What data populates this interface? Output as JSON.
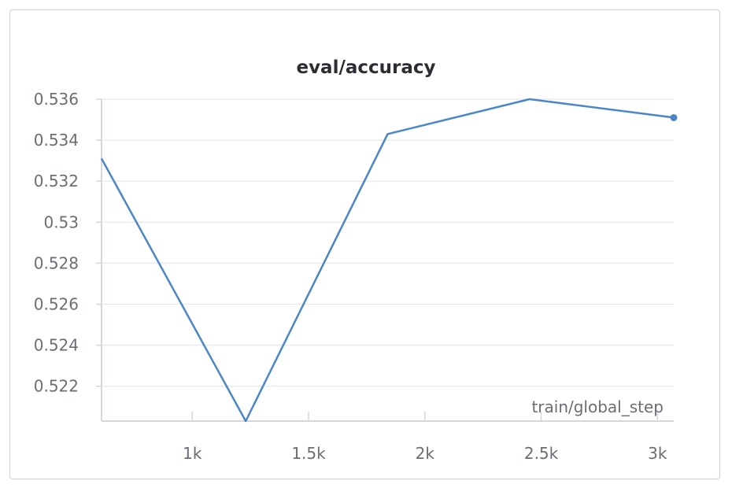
{
  "chart_data": {
    "type": "line",
    "title": "eval/accuracy",
    "xlabel": "train/global_step",
    "ylabel": "",
    "x_ticks": [
      {
        "value": 1000,
        "label": "1k"
      },
      {
        "value": 1500,
        "label": "1.5k"
      },
      {
        "value": 2000,
        "label": "2k"
      },
      {
        "value": 2500,
        "label": "2.5k"
      },
      {
        "value": 3000,
        "label": "3k"
      }
    ],
    "y_ticks": [
      {
        "value": 0.522,
        "label": "0.522"
      },
      {
        "value": 0.524,
        "label": "0.524"
      },
      {
        "value": 0.526,
        "label": "0.526"
      },
      {
        "value": 0.528,
        "label": "0.528"
      },
      {
        "value": 0.53,
        "label": "0.53"
      },
      {
        "value": 0.532,
        "label": "0.532"
      },
      {
        "value": 0.534,
        "label": "0.534"
      },
      {
        "value": 0.536,
        "label": "0.536"
      }
    ],
    "xlim": [
      610,
      3070
    ],
    "ylim": [
      0.5203,
      0.536
    ],
    "grid": true,
    "series": [
      {
        "color": "#4a86c8",
        "x": [
          610,
          1230,
          1840,
          2450,
          3070
        ],
        "y": [
          0.5331,
          0.5203,
          0.5343,
          0.536,
          0.5351
        ]
      }
    ]
  }
}
